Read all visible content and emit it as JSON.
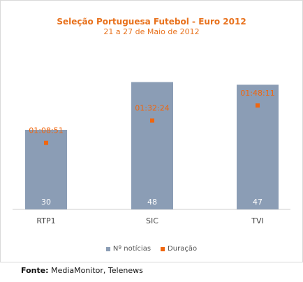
{
  "chart_data": {
    "type": "bar",
    "title": "Seleção Portuguesa Futebol - Euro 2012",
    "subtitle": "21 a 27 de Maio de 2012",
    "categories": [
      "RTP1",
      "SIC",
      "TVI"
    ],
    "series": [
      {
        "name": "Nº notícias",
        "type": "bar",
        "color": "#8b9db5",
        "values": [
          30,
          48,
          47
        ]
      },
      {
        "name": "Duração",
        "type": "marker",
        "color": "#f0660e",
        "values": [
          "01:08:51",
          "01:32:24",
          "01:48:11"
        ],
        "values_seconds": [
          4131,
          5544,
          6491
        ]
      }
    ],
    "legend_position": "bottom",
    "grid": false
  },
  "source": {
    "label": "Fonte:",
    "text": "MediaMonitor, Telenews"
  }
}
